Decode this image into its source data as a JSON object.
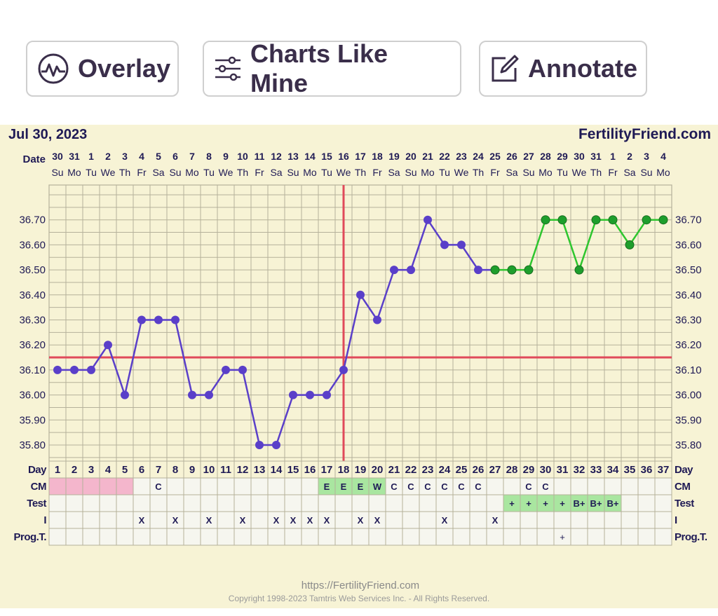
{
  "toolbar": {
    "overlay_label": "Overlay",
    "charts_like_mine_label": "Charts Like Mine",
    "annotate_label": "Annotate"
  },
  "header": {
    "date": "Jul 30, 2023",
    "brand": "FertilityFriend.com"
  },
  "footer": {
    "url": "https://FertilityFriend.com",
    "copyright": "Copyright 1998-2023 Tamtris Web Services Inc. - All Rights Reserved."
  },
  "colors": {
    "chart_bg": "#f7f3d5",
    "grid": "#b5b19a",
    "pre_line": "#5a3fc9",
    "post_line": "#2ec62e",
    "coverline": "#e04a5a",
    "menses": "#f4b6cc",
    "highlight": "#a9e6a0",
    "cell_bg": "#f6f6ef",
    "text_dark": "#1f1a55"
  },
  "chart_data": {
    "type": "line",
    "row_labels": {
      "date": "Date",
      "day": "Day",
      "cm": "CM",
      "test": "Test",
      "i": "I",
      "prog": "Prog.T."
    },
    "dates": [
      "30",
      "31",
      "1",
      "2",
      "3",
      "4",
      "5",
      "6",
      "7",
      "8",
      "9",
      "10",
      "11",
      "12",
      "13",
      "14",
      "15",
      "16",
      "17",
      "18",
      "19",
      "20",
      "21",
      "22",
      "23",
      "24",
      "25",
      "26",
      "27",
      "28",
      "29",
      "30",
      "31",
      "1",
      "2",
      "3",
      "4"
    ],
    "weekdays": [
      "Su",
      "Mo",
      "Tu",
      "We",
      "Th",
      "Fr",
      "Sa",
      "Su",
      "Mo",
      "Tu",
      "We",
      "Th",
      "Fr",
      "Sa",
      "Su",
      "Mo",
      "Tu",
      "We",
      "Th",
      "Fr",
      "Sa",
      "Su",
      "Mo",
      "Tu",
      "We",
      "Th",
      "Fr",
      "Sa",
      "Su",
      "Mo",
      "Tu",
      "We",
      "Th",
      "Fr",
      "Sa",
      "Su",
      "Mo"
    ],
    "days": [
      1,
      2,
      3,
      4,
      5,
      6,
      7,
      8,
      9,
      10,
      11,
      12,
      13,
      14,
      15,
      16,
      17,
      18,
      19,
      20,
      21,
      22,
      23,
      24,
      25,
      26,
      27,
      28,
      29,
      30,
      31,
      32,
      33,
      34,
      35,
      36,
      37
    ],
    "yticks": [
      "36.70",
      "36.60",
      "36.50",
      "36.40",
      "36.30",
      "36.20",
      "36.10",
      "36.00",
      "35.90",
      "35.80"
    ],
    "ylim": [
      35.7,
      36.8
    ],
    "series": [
      {
        "values": [
          36.1,
          36.1,
          36.1,
          36.2,
          36.0,
          36.3,
          36.3,
          36.3,
          36.0,
          36.0,
          36.1,
          36.1,
          35.8,
          35.8,
          36.0,
          36.0,
          36.0,
          36.1,
          36.4,
          36.3,
          36.5,
          36.5,
          36.7,
          36.6,
          36.6,
          36.5,
          36.5,
          null,
          null,
          null,
          null,
          null,
          null,
          null,
          null,
          null,
          null
        ]
      },
      {
        "values": [
          null,
          null,
          null,
          null,
          null,
          null,
          null,
          null,
          null,
          null,
          null,
          null,
          null,
          null,
          null,
          null,
          null,
          null,
          null,
          null,
          null,
          null,
          null,
          null,
          null,
          null,
          36.5,
          36.5,
          36.5,
          36.7,
          36.7,
          36.5,
          36.7,
          36.7,
          36.6,
          36.7,
          36.7
        ]
      }
    ],
    "coverline": 36.15,
    "ovulation_day": 18,
    "menses_days": [
      1,
      2,
      3,
      4,
      5
    ],
    "cm": [
      "",
      "",
      "",
      "",
      "",
      "",
      "C",
      "",
      "",
      "",
      "",
      "",
      "",
      "",
      "",
      "",
      "E",
      "E",
      "E",
      "W",
      "C",
      "C",
      "C",
      "C",
      "C",
      "C",
      "",
      "",
      "C",
      "C",
      "",
      "",
      "",
      "",
      "",
      "",
      ""
    ],
    "test": [
      "",
      "",
      "",
      "",
      "",
      "",
      "",
      "",
      "",
      "",
      "",
      "",
      "",
      "",
      "",
      "",
      "",
      "",
      "",
      "",
      "",
      "",
      "",
      "",
      "",
      "",
      "",
      "+",
      "+",
      "+",
      "+",
      "B+",
      "B+",
      "B+",
      "",
      "",
      ""
    ],
    "i": [
      "",
      "",
      "",
      "",
      "",
      "X",
      "",
      "X",
      "",
      "X",
      "",
      "X",
      "",
      "X",
      "X",
      "X",
      "X",
      "",
      "X",
      "X",
      "",
      "",
      "",
      "X",
      "",
      "",
      "X",
      "",
      "",
      "",
      "",
      "",
      "",
      "",
      "",
      "",
      ""
    ],
    "prog": [
      "",
      "",
      "",
      "",
      "",
      "",
      "",
      "",
      "",
      "",
      "",
      "",
      "",
      "",
      "",
      "",
      "",
      "",
      "",
      "",
      "",
      "",
      "",
      "",
      "",
      "",
      "",
      "",
      "",
      "",
      "+",
      "",
      "",
      "",
      "",
      "",
      ""
    ],
    "grid": true
  }
}
